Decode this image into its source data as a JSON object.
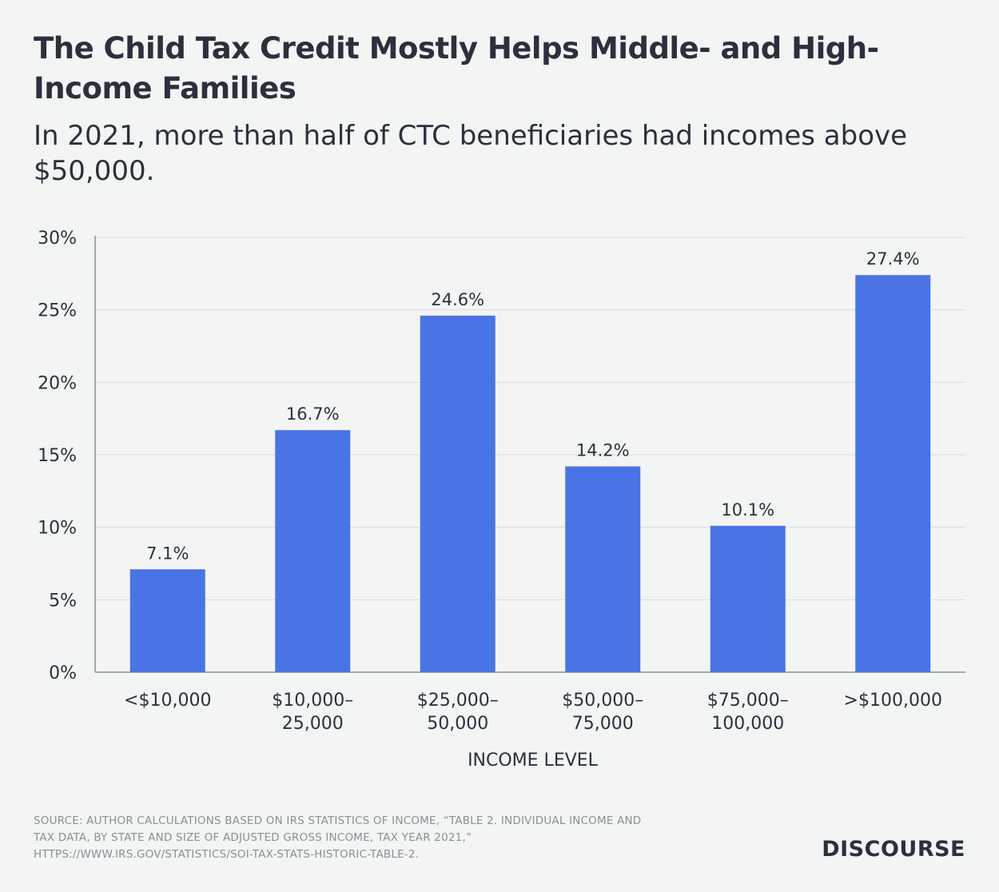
{
  "header": {
    "title": "The Child Tax Credit Mostly Helps Middle- and High-Income Families",
    "subtitle": "In 2021, more than half of CTC beneficiaries had incomes above $50,000."
  },
  "footer": {
    "source": "SOURCE: AUTHOR CALCULATIONS BASED ON IRS STATISTICS OF INCOME, “TABLE 2. INDIVIDUAL INCOME AND TAX DATA, BY STATE AND SIZE OF ADJUSTED GROSS INCOME, TAX YEAR 2021,” HTTPS://WWW.IRS.GOV/STATISTICS/SOI-TAX-STATS-HISTORIC-TABLE-2.",
    "brand": "DISCOURSE"
  },
  "colors": {
    "bar": "#4a74e6",
    "grid": "#d8dadd",
    "text": "#2b303d"
  },
  "chart_data": {
    "type": "bar",
    "title": "The Child Tax Credit Mostly Helps Middle- and High-Income Families",
    "subtitle": "In 2021, more than half of CTC beneficiaries had incomes above $50,000.",
    "categories": [
      [
        "<$10,000"
      ],
      [
        "$10,000–",
        "25,000"
      ],
      [
        "$25,000–",
        "50,000"
      ],
      [
        "$50,000–",
        "75,000"
      ],
      [
        "$75,000–",
        "100,000"
      ],
      [
        ">$100,000"
      ]
    ],
    "values": [
      7.1,
      16.7,
      24.6,
      14.2,
      10.1,
      27.4
    ],
    "data_labels": [
      "7.1%",
      "16.7%",
      "24.6%",
      "14.2%",
      "10.1%",
      "27.4%"
    ],
    "xlabel": "INCOME LEVEL",
    "ylabel": "",
    "ylim": [
      0,
      30
    ],
    "yticks": [
      0,
      5,
      10,
      15,
      20,
      25,
      30
    ],
    "ytick_labels": [
      "0%",
      "5%",
      "10%",
      "15%",
      "20%",
      "25%",
      "30%"
    ],
    "grid": true,
    "legend": "none"
  }
}
